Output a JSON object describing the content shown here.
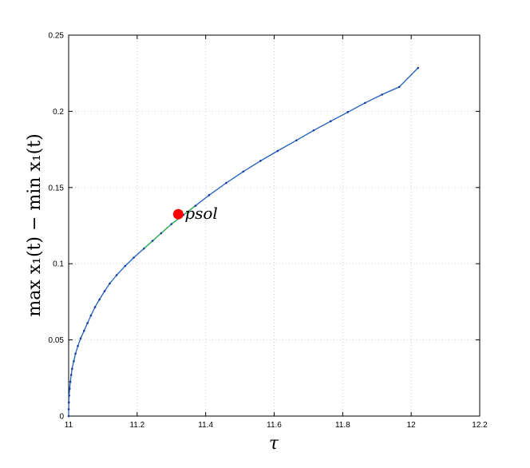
{
  "chart_data": {
    "type": "line",
    "title": "",
    "xlabel": "τ",
    "ylabel": "max x₁(t) − min x₁(t)",
    "xlim": [
      11,
      12.2
    ],
    "ylim": [
      0,
      0.25
    ],
    "x_ticks": [
      "11",
      "11.2",
      "11.4",
      "11.6",
      "11.8",
      "12",
      "12.2"
    ],
    "y_ticks": [
      "0",
      "0.05",
      "0.1",
      "0.15",
      "0.2",
      "0.25"
    ],
    "x_tick_values": [
      11,
      11.2,
      11.4,
      11.6,
      11.8,
      12,
      12.2
    ],
    "y_tick_values": [
      0,
      0.05,
      0.1,
      0.15,
      0.2,
      0.25
    ],
    "grid": true,
    "colors": {
      "line": "#1f5fc0",
      "marker": "#1a3a9c",
      "highlight": "#2fb34a",
      "point": "#ff0000"
    },
    "series": [
      {
        "x": [
          11.0,
          11.0002,
          11.0007,
          11.0015,
          11.003,
          11.005,
          11.0075,
          11.01,
          11.015,
          11.02,
          11.027,
          11.035,
          11.045,
          11.055,
          11.065,
          11.077,
          11.09,
          11.105,
          11.12,
          11.14,
          11.165,
          11.19,
          11.22,
          11.245,
          11.27,
          11.3,
          11.335,
          11.37,
          11.41,
          11.46,
          11.51,
          11.56,
          11.61,
          11.665,
          11.715,
          11.765,
          11.815,
          11.865,
          11.915,
          11.965,
          12.02
        ],
        "y": [
          0.0,
          0.0045,
          0.009,
          0.0135,
          0.018,
          0.0225,
          0.027,
          0.031,
          0.036,
          0.041,
          0.046,
          0.051,
          0.056,
          0.061,
          0.066,
          0.0715,
          0.0765,
          0.082,
          0.087,
          0.0925,
          0.0985,
          0.104,
          0.11,
          0.115,
          0.12,
          0.126,
          0.132,
          0.138,
          0.145,
          0.153,
          0.1605,
          0.1675,
          0.174,
          0.181,
          0.1875,
          0.1935,
          0.1995,
          0.2055,
          0.211,
          0.216,
          0.2285
        ]
      }
    ],
    "annotation": {
      "label": "psol",
      "x": 11.32,
      "y": 0.1325
    },
    "highlight_range": [
      11.22,
      11.37
    ]
  }
}
